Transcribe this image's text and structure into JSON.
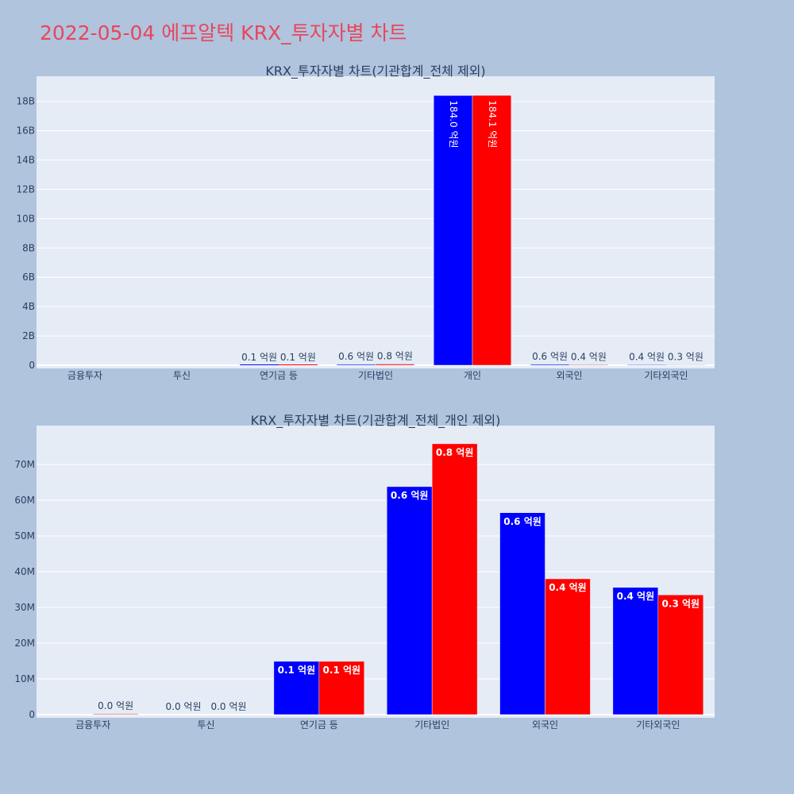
{
  "page": {
    "title": "2022-05-04 에프알텍 KRX_투자자별 차트",
    "background": "#b0c4de",
    "title_color": "#e8465a"
  },
  "colors": {
    "series_a": "#0000ff",
    "series_b": "#ff0000",
    "plot_bg": "#e5ecf6",
    "grid": "#ffffff",
    "text": "#2a3f5f"
  },
  "chart_data": [
    {
      "type": "bar",
      "title": "KRX_투자자별 차트(기관합계_전체 제외)",
      "categories": [
        "금융투자",
        "투신",
        "연기금 등",
        "기타법인",
        "개인",
        "외국인",
        "기타외국인"
      ],
      "series": [
        {
          "values": [
            0,
            0,
            10000000,
            60000000,
            18400000000,
            60000000,
            40000000
          ],
          "labels": [
            "",
            "",
            "0.1 억원",
            "0.6 억원",
            "184.0 억원",
            "0.6 억원",
            "0.4 억원"
          ]
        },
        {
          "values": [
            0,
            0,
            10000000,
            80000000,
            18410000000,
            40000000,
            30000000
          ],
          "labels": [
            "",
            "",
            "0.1 억원",
            "0.8 억원",
            "184.1 억원",
            "0.4 억원",
            "0.3 억원"
          ]
        }
      ],
      "y_ticks": [
        "0",
        "2B",
        "4B",
        "6B",
        "8B",
        "10B",
        "12B",
        "14B",
        "16B",
        "18B"
      ],
      "y_tick_values": [
        0,
        2000000000,
        4000000000,
        6000000000,
        8000000000,
        10000000000,
        12000000000,
        14000000000,
        16000000000,
        18000000000
      ],
      "ylim": [
        0,
        19500000000
      ],
      "grid": true,
      "legend": "none"
    },
    {
      "type": "bar",
      "title": "KRX_투자자별 차트(기관합계_전체_개인 제외)",
      "categories": [
        "금융투자",
        "투신",
        "연기금 등",
        "기타법인",
        "외국인",
        "기타외국인"
      ],
      "series": [
        {
          "values": [
            0,
            0,
            14900000,
            63800000,
            56500000,
            35600000
          ],
          "labels": [
            "",
            "0.0 억원",
            "0.1 억원",
            "0.6 억원",
            "0.6 억원",
            "0.4 억원"
          ]
        },
        {
          "values": [
            200000,
            0,
            14900000,
            75800000,
            38000000,
            33500000
          ],
          "labels": [
            "0.0 억원",
            "0.0 억원",
            "0.1 억원",
            "0.8 억원",
            "0.4 억원",
            "0.3 억원"
          ]
        }
      ],
      "y_ticks": [
        "0",
        "10M",
        "20M",
        "30M",
        "40M",
        "50M",
        "60M",
        "70M"
      ],
      "y_tick_values": [
        0,
        10000000,
        20000000,
        30000000,
        40000000,
        50000000,
        60000000,
        70000000
      ],
      "ylim": [
        0,
        80000000
      ],
      "grid": true,
      "legend": "none"
    }
  ]
}
